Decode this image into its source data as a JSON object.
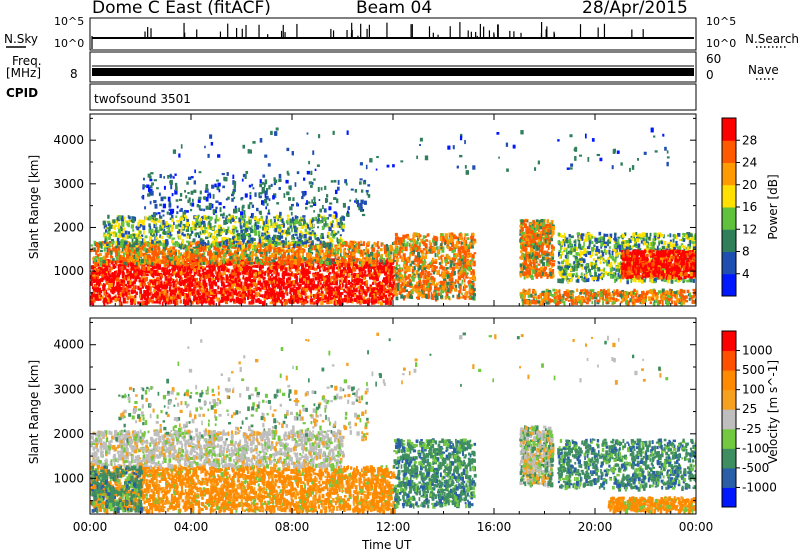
{
  "header": {
    "radar": "Dome C East (fitACF)",
    "beam": "Beam 04",
    "date": "28/Apr/2015"
  },
  "strips": {
    "nsky_label": "N.Sky",
    "nsky_ticks": [
      "10^5",
      "10^0"
    ],
    "nsearch_label": "N.Search",
    "nsearch_ticks": [
      "10^5",
      "10^0"
    ],
    "freq_label_1": "Freq.",
    "freq_label_2": "[MHz]",
    "freq_ticks": [
      "8"
    ],
    "nave_label": "Nave",
    "nave_ticks": [
      "60",
      "0"
    ],
    "cpid_label": "CPID",
    "cpid_value": "twofsound 3501"
  },
  "time_axis": {
    "label": "Time UT",
    "ticks": [
      "00:00",
      "04:00",
      "08:00",
      "12:00",
      "16:00",
      "20:00",
      "00:00"
    ]
  },
  "chart_data": [
    {
      "type": "heatmap",
      "panel": "power",
      "ylabel": "Slant Range [km]",
      "y_ticks": [
        1000,
        2000,
        3000,
        4000
      ],
      "ylim": [
        200,
        4600
      ],
      "xlim_hours": [
        0,
        24
      ],
      "colorbar": {
        "label": "Power [dB]",
        "ticks": [
          "4",
          "8",
          "12",
          "16",
          "20",
          "24",
          "28"
        ],
        "colors": [
          "#0018ff",
          "#1f4fb0",
          "#2f7f5a",
          "#5fc13c",
          "#ffe000",
          "#ff9a00",
          "#ff5a00",
          "#ff0000"
        ]
      }
    },
    {
      "type": "heatmap",
      "panel": "velocity",
      "ylabel": "Slant Range [km]",
      "y_ticks": [
        1000,
        2000,
        3000,
        4000
      ],
      "ylim": [
        200,
        4600
      ],
      "xlim_hours": [
        0,
        24
      ],
      "colorbar": {
        "label": "Velocity [m s^-1]",
        "ticks": [
          "1000",
          "500",
          "100",
          "25",
          "-25",
          "-100",
          "-500",
          "-1000"
        ],
        "colors": [
          "#0018ff",
          "#2a5fa8",
          "#3f8e62",
          "#72c83f",
          "#bebebe",
          "#f6a020",
          "#ff8a00",
          "#ff5000",
          "#ff0000"
        ]
      }
    }
  ]
}
